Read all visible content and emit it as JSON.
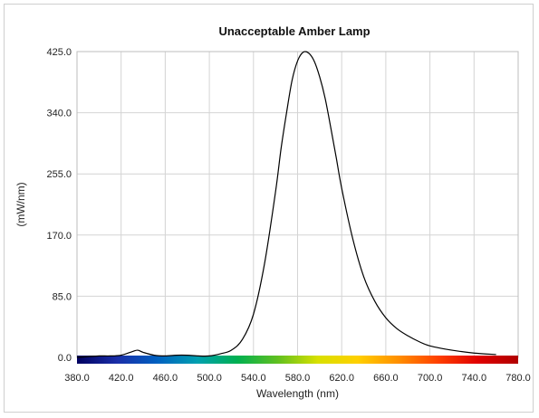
{
  "chart_data": {
    "type": "line",
    "title": "Unacceptable Amber Lamp",
    "xlabel": "Wavelength (nm)",
    "ylabel": "(mW/nm)",
    "xlim": [
      380,
      780
    ],
    "ylim": [
      0,
      425
    ],
    "x_ticks": [
      "380.0",
      "420.0",
      "460.0",
      "500.0",
      "540.0",
      "580.0",
      "620.0",
      "660.0",
      "700.0",
      "740.0",
      "780.0"
    ],
    "y_ticks": [
      "0.0",
      "85.0",
      "170.0",
      "255.0",
      "340.0",
      "425.0"
    ],
    "grid": true,
    "legend": "none",
    "series": [
      {
        "color": "#000000",
        "x": [
          380,
          390,
          400,
          410,
          420,
          430,
          435,
          440,
          450,
          460,
          470,
          480,
          490,
          500,
          510,
          520,
          530,
          540,
          550,
          560,
          565,
          570,
          575,
          580,
          585,
          590,
          595,
          600,
          605,
          610,
          615,
          620,
          630,
          640,
          650,
          660,
          670,
          680,
          690,
          700,
          720,
          740,
          760
        ],
        "y": [
          0,
          1,
          2,
          2,
          3,
          8,
          10,
          7,
          3,
          2,
          3,
          3,
          2,
          2,
          5,
          10,
          25,
          60,
          130,
          230,
          290,
          340,
          385,
          412,
          424,
          423,
          412,
          390,
          360,
          320,
          278,
          235,
          165,
          112,
          78,
          55,
          40,
          30,
          22,
          16,
          10,
          6,
          4
        ]
      }
    ],
    "spectrum_band": {
      "x_start": 380,
      "x_end": 780,
      "colors": [
        "#000060",
        "#1a2ea8",
        "#0060c0",
        "#00a0b0",
        "#00b050",
        "#60c020",
        "#d8e000",
        "#ffd000",
        "#ff9000",
        "#ff4000",
        "#e00000",
        "#b00000"
      ]
    }
  }
}
